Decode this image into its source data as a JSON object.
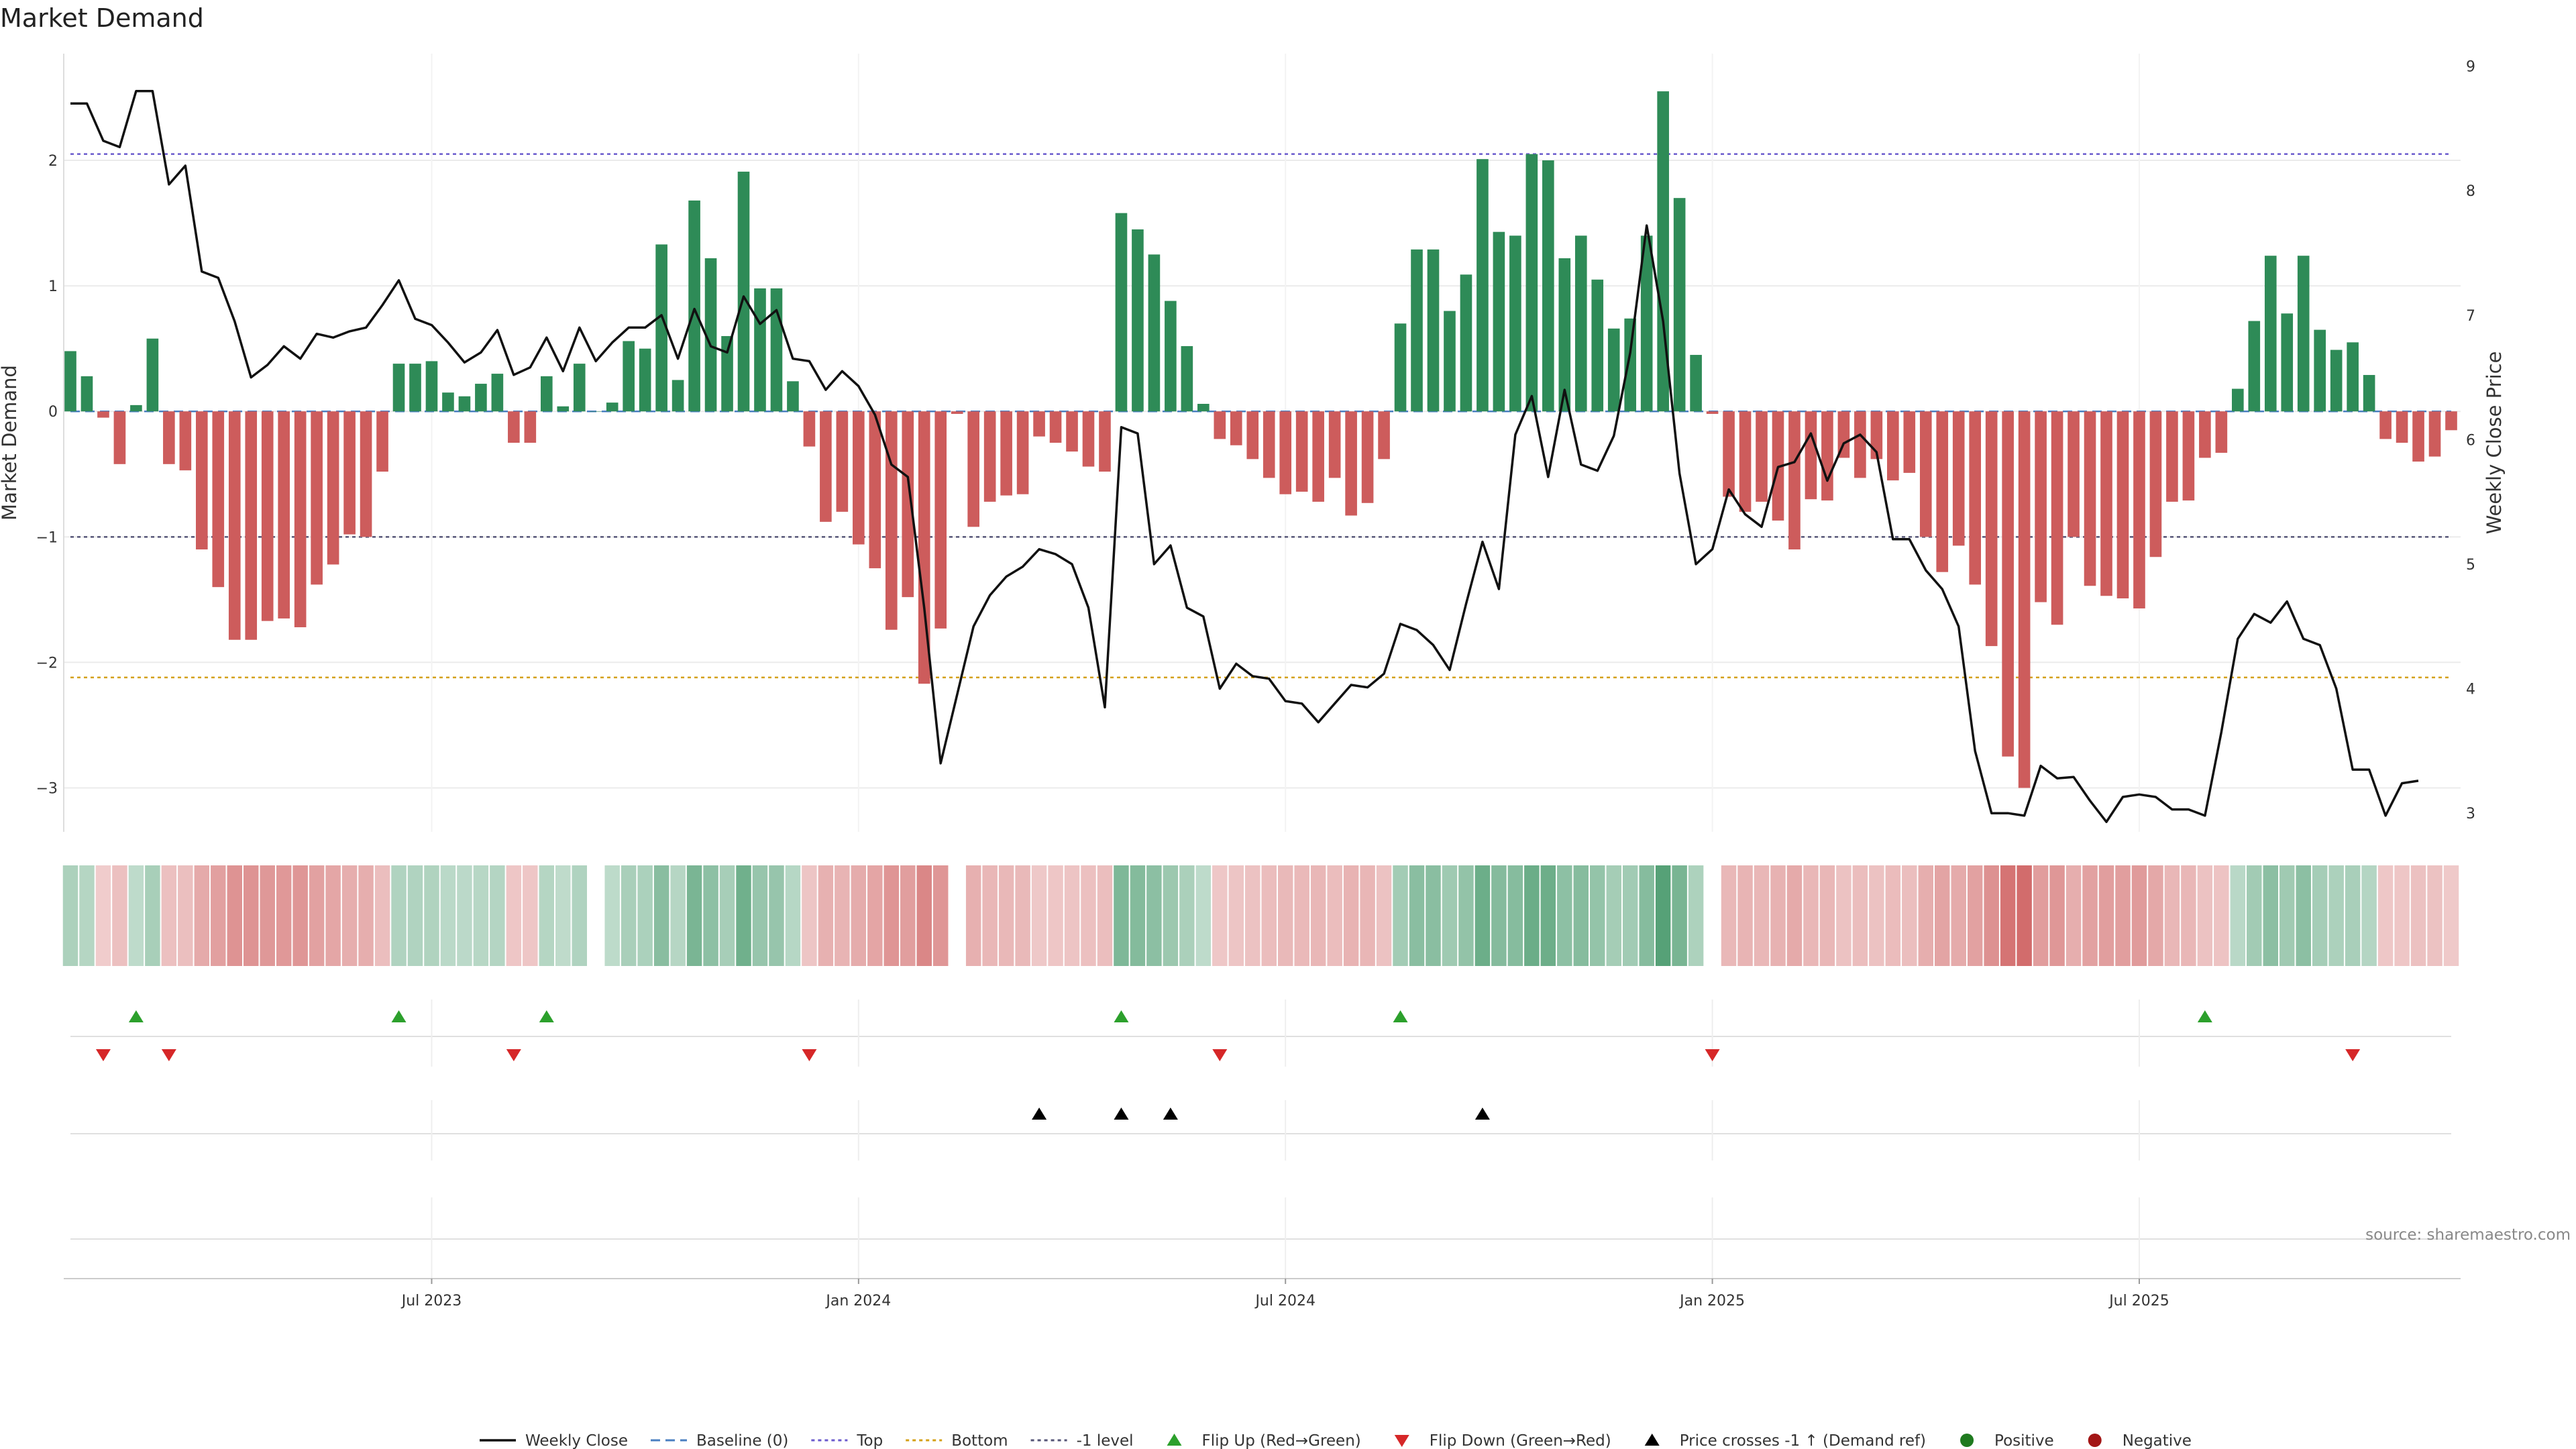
{
  "chart_data": {
    "type": "bar",
    "title": "Market Demand",
    "ylabel_left": "Market Demand",
    "ylabel_right": "Weekly Close Price",
    "ylim_left": [
      -3.35,
      2.85
    ],
    "ylim_right": [
      2.85,
      9.1
    ],
    "left_ticks": [
      {
        "v": 2,
        "label": "2"
      },
      {
        "v": 1,
        "label": "1"
      },
      {
        "v": 0,
        "label": "0"
      },
      {
        "v": -1,
        "label": "−1"
      },
      {
        "v": -2,
        "label": "−2"
      },
      {
        "v": -3,
        "label": "−3"
      }
    ],
    "right_ticks": [
      {
        "v": 9,
        "label": "9"
      },
      {
        "v": 8,
        "label": "8"
      },
      {
        "v": 7,
        "label": "7"
      },
      {
        "v": 6,
        "label": "6"
      },
      {
        "v": 5,
        "label": "5"
      },
      {
        "v": 4,
        "label": "4"
      },
      {
        "v": 3,
        "label": "3"
      }
    ],
    "x_ticks": [
      {
        "week": 22,
        "label": "Jul 2023"
      },
      {
        "week": 48,
        "label": "Jan 2024"
      },
      {
        "week": 74,
        "label": "Jul 2024"
      },
      {
        "week": 100,
        "label": "Jan 2025"
      },
      {
        "week": 126,
        "label": "Jul 2025"
      }
    ],
    "reference_lines": [
      {
        "name": "Top",
        "value": 2.05,
        "color": "#6a5acd"
      },
      {
        "name": "Bottom",
        "value": -2.12,
        "color": "#d4a017"
      },
      {
        "name": "-1 level",
        "value": -1,
        "color": "#555577"
      },
      {
        "name": "Baseline (0)",
        "value": 0,
        "color": "#4a7fc1"
      }
    ],
    "demand": [
      0.48,
      0.28,
      -0.05,
      -0.42,
      0.05,
      0.58,
      -0.42,
      -0.47,
      -1.1,
      -1.4,
      -1.82,
      -1.82,
      -1.67,
      -1.65,
      -1.72,
      -1.38,
      -1.22,
      -0.98,
      -1.0,
      -0.48,
      0.38,
      0.38,
      0.4,
      0.15,
      0.12,
      0.22,
      0.3,
      -0.25,
      -0.25,
      0.28,
      0.04,
      0.38,
      0.0,
      0.07,
      0.56,
      0.5,
      1.33,
      0.25,
      1.68,
      1.22,
      0.6,
      1.91,
      0.98,
      0.98,
      0.24,
      -0.28,
      -0.88,
      -0.8,
      -1.06,
      -1.25,
      -1.74,
      -1.48,
      -2.17,
      -1.73,
      -0.02,
      -0.92,
      -0.72,
      -0.67,
      -0.66,
      -0.2,
      -0.25,
      -0.32,
      -0.44,
      -0.48,
      1.58,
      1.45,
      1.25,
      0.88,
      0.52,
      0.06,
      -0.22,
      -0.27,
      -0.38,
      -0.53,
      -0.66,
      -0.64,
      -0.72,
      -0.53,
      -0.83,
      -0.73,
      -0.38,
      0.7,
      1.29,
      1.29,
      0.8,
      1.09,
      2.01,
      1.43,
      1.4,
      2.05,
      2.0,
      1.22,
      1.4,
      1.05,
      0.66,
      0.74,
      1.4,
      2.55,
      1.7,
      0.45,
      -0.02,
      -0.68,
      -0.8,
      -0.72,
      -0.87,
      -1.1,
      -0.7,
      -0.71,
      -0.37,
      -0.53,
      -0.38,
      -0.55,
      -0.49,
      -1.0,
      -1.28,
      -1.07,
      -1.38,
      -1.87,
      -2.75,
      -3.0,
      -1.52,
      -1.7,
      -1.0,
      -1.39,
      -1.47,
      -1.49,
      -1.57,
      -1.16,
      -0.72,
      -0.71,
      -0.37,
      -0.33,
      0.18,
      0.72,
      1.24,
      0.78,
      1.24,
      0.65,
      0.49,
      0.55,
      0.29,
      -0.22,
      -0.25,
      -0.4,
      -0.36,
      -0.15
    ],
    "weekly_close": [
      8.7,
      8.7,
      8.4,
      8.35,
      8.8,
      8.8,
      8.05,
      8.2,
      7.35,
      7.3,
      6.95,
      6.5,
      6.6,
      6.75,
      6.65,
      6.85,
      6.82,
      6.87,
      6.9,
      7.08,
      7.28,
      6.97,
      6.92,
      6.78,
      6.62,
      6.7,
      6.88,
      6.52,
      6.58,
      6.82,
      6.55,
      6.9,
      6.63,
      6.78,
      6.9,
      6.9,
      7.0,
      6.65,
      7.05,
      6.75,
      6.7,
      7.15,
      6.93,
      7.04,
      6.65,
      6.63,
      6.4,
      6.55,
      6.43,
      6.2,
      5.8,
      5.7,
      4.65,
      3.4,
      3.95,
      4.5,
      4.75,
      4.9,
      4.98,
      5.12,
      5.08,
      5.0,
      4.65,
      3.85,
      6.1,
      6.05,
      5.0,
      5.15,
      4.65,
      4.58,
      4.0,
      4.2,
      4.1,
      4.08,
      3.9,
      3.88,
      3.73,
      3.88,
      4.03,
      4.01,
      4.12,
      4.52,
      4.47,
      4.35,
      4.15,
      4.68,
      5.18,
      4.8,
      6.04,
      6.35,
      5.7,
      6.4,
      5.8,
      5.75,
      6.03,
      6.7,
      7.72,
      6.95,
      5.73,
      5.0,
      5.12,
      5.6,
      5.4,
      5.3,
      5.78,
      5.82,
      6.05,
      5.67,
      5.97,
      6.04,
      5.9,
      5.2,
      5.2,
      4.95,
      4.8,
      4.5,
      3.5,
      3.0,
      3.0,
      2.98,
      3.38,
      3.28,
      3.29,
      3.1,
      2.93,
      3.13,
      3.15,
      3.13,
      3.03,
      3.03,
      2.98,
      3.65,
      4.4,
      4.6,
      4.53,
      4.7,
      4.4,
      4.35,
      4.0,
      3.35,
      3.35,
      2.98,
      3.24,
      3.26
    ],
    "flip_up_weeks": [
      4,
      20,
      29,
      64,
      81,
      130
    ],
    "flip_down_weeks": [
      2,
      6,
      27,
      45,
      70,
      100,
      139
    ],
    "price_cross_weeks": [
      59,
      64,
      67,
      86
    ],
    "legend": [
      {
        "key": "weekly-close",
        "label": "Weekly Close"
      },
      {
        "key": "baseline",
        "label": "Baseline (0)"
      },
      {
        "key": "top",
        "label": "Top"
      },
      {
        "key": "bottom",
        "label": "Bottom"
      },
      {
        "key": "minus-one",
        "label": "-1 level"
      },
      {
        "key": "flip-up",
        "label": "Flip Up (Red→Green)"
      },
      {
        "key": "flip-down",
        "label": "Flip Down (Green→Red)"
      },
      {
        "key": "price-cross",
        "label": "Price crosses -1 ↑ (Demand ref)"
      },
      {
        "key": "positive",
        "label": "Positive"
      },
      {
        "key": "negative",
        "label": "Negative"
      }
    ],
    "colors": {
      "positive": "#2e8b57",
      "negative": "#cd5c5c",
      "close_line": "#111111",
      "flip_up": "#2ca02c",
      "flip_down": "#d62728",
      "price_cross": "#000000",
      "legend_positive": "#1f7a1f",
      "legend_negative": "#a31515",
      "top": "#6a5acd",
      "bottom": "#d4a017",
      "minus_one": "#555577",
      "baseline": "#4a7fc1"
    },
    "source": "source: sharemaestro.com"
  }
}
